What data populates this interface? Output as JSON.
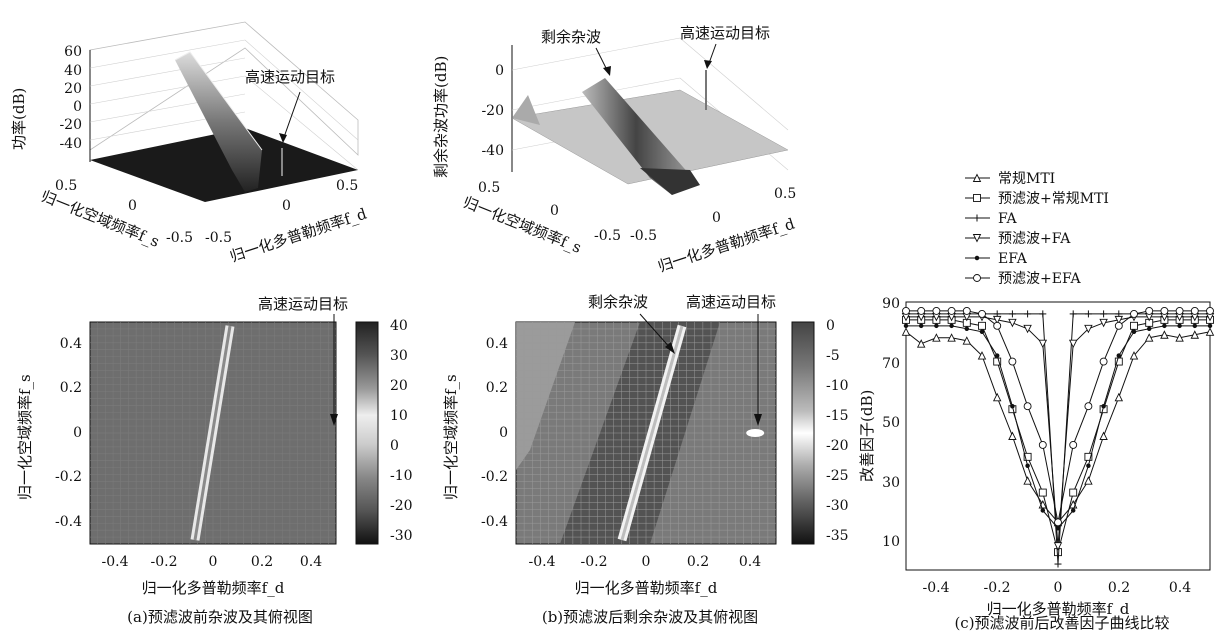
{
  "captions": {
    "a": "(a)预滤波前杂波及其俯视图",
    "b": "(b)预滤波后剩余杂波及其俯视图",
    "c": "(c)预滤波前后改善因子曲线比较"
  },
  "colors": {
    "axis": "#111111",
    "clutter": "#e8e8e8",
    "target": "#ffffff"
  },
  "chart_data": [
    {
      "id": "a-3d",
      "type": "area",
      "zlabel": "功率(dB)",
      "xlabel": "归一化多普勒频率f_d",
      "ylabel": "归一化空域频率f_s",
      "zticks": [
        "60",
        "40",
        "20",
        "0",
        "-20",
        "-40"
      ],
      "xticks": [
        "-0.5",
        "0",
        "0.5"
      ],
      "yticks": [
        "0.5",
        "0",
        "-0.5"
      ],
      "annotations": [
        "高速运动目标"
      ],
      "zlim": [
        -40,
        60
      ]
    },
    {
      "id": "b-3d",
      "type": "area",
      "zlabel": "剩余杂波功率(dB)",
      "xlabel": "归一化多普勒频率f_d",
      "ylabel": "归一化空域频率f_s",
      "zticks": [
        "0",
        "-20",
        "-40"
      ],
      "xticks": [
        "-0.5",
        "0",
        "0.5"
      ],
      "yticks": [
        "0.5",
        "0",
        "-0.5"
      ],
      "annotations": [
        "剩余杂波",
        "高速运动目标"
      ],
      "zlim": [
        -50,
        10
      ]
    },
    {
      "id": "a-top",
      "type": "heatmap",
      "xlabel": "归一化多普勒频率f_d",
      "ylabel": "归一化空域频率f_s",
      "xticks": [
        "-0.4",
        "-0.2",
        "0",
        "0.2",
        "0.4"
      ],
      "yticks": [
        "0.4",
        "0.2",
        "0",
        "-0.2",
        "-0.4"
      ],
      "colorbar": [
        "40",
        "30",
        "20",
        "10",
        "0",
        "-10",
        "-20",
        "-30"
      ],
      "annotations": [
        "高速运动目标"
      ],
      "xlim": [
        -0.5,
        0.5
      ],
      "ylim": [
        -0.5,
        0.5
      ]
    },
    {
      "id": "b-top",
      "type": "heatmap",
      "xlabel": "归一化多普勒频率f_d",
      "ylabel": "归一化空域频率f_s",
      "xticks": [
        "-0.4",
        "-0.2",
        "0",
        "0.2",
        "0.4"
      ],
      "yticks": [
        "0.4",
        "0.2",
        "0",
        "-0.2",
        "-0.4"
      ],
      "colorbar": [
        "0",
        "-5",
        "-10",
        "-15",
        "-20",
        "-25",
        "-30",
        "-35"
      ],
      "annotations": [
        "剩余杂波",
        "高速运动目标"
      ],
      "target": {
        "x": 0.42,
        "y": 0.0
      },
      "xlim": [
        -0.5,
        0.5
      ],
      "ylim": [
        -0.5,
        0.5
      ]
    },
    {
      "id": "c-if",
      "type": "line",
      "xlabel": "归一化多普勒频率f_d",
      "ylabel": "改善因子(dB)",
      "xlim": [
        -0.5,
        0.5
      ],
      "ylim": [
        0,
        90
      ],
      "xticks": [
        "-0.4",
        "-0.2",
        "0",
        "0.2",
        "0.4"
      ],
      "yticks": [
        "90",
        "70",
        "50",
        "30",
        "10"
      ],
      "x": [
        -0.5,
        -0.45,
        -0.4,
        -0.35,
        -0.3,
        -0.25,
        -0.2,
        -0.15,
        -0.1,
        -0.05,
        0,
        0.05,
        0.1,
        0.15,
        0.2,
        0.25,
        0.3,
        0.35,
        0.4,
        0.45,
        0.5
      ],
      "series": [
        {
          "name": "常规MTI",
          "marker": "triangle",
          "values": [
            80,
            76,
            78,
            78,
            77,
            72,
            58,
            45,
            30,
            22,
            16,
            22,
            30,
            45,
            58,
            72,
            78,
            79,
            78,
            79,
            80
          ]
        },
        {
          "name": "预滤波+常规MTI",
          "marker": "square",
          "values": [
            84,
            84,
            84,
            84,
            83,
            82,
            70,
            54,
            38,
            26,
            6,
            26,
            38,
            54,
            70,
            82,
            83,
            84,
            84,
            84,
            84
          ]
        },
        {
          "name": "FA",
          "marker": "plus",
          "values": [
            86,
            86,
            86,
            86,
            86,
            86,
            86,
            86,
            86,
            86,
            2,
            86,
            86,
            86,
            86,
            86,
            86,
            86,
            86,
            86,
            86
          ]
        },
        {
          "name": "预滤波+FA",
          "marker": "triangle-down",
          "values": [
            85,
            85,
            85,
            85,
            85,
            85,
            84,
            83,
            81,
            76,
            8,
            76,
            81,
            83,
            84,
            85,
            85,
            85,
            85,
            85,
            85
          ]
        },
        {
          "name": "EFA",
          "marker": "dot",
          "values": [
            82,
            82,
            82,
            82,
            81,
            80,
            72,
            55,
            35,
            20,
            14,
            20,
            35,
            55,
            72,
            80,
            81,
            82,
            82,
            82,
            82
          ]
        },
        {
          "name": "预滤波+EFA",
          "marker": "circle",
          "values": [
            87,
            87,
            87,
            87,
            87,
            86,
            82,
            70,
            55,
            42,
            16,
            42,
            55,
            70,
            82,
            86,
            87,
            87,
            87,
            87,
            87
          ]
        }
      ]
    }
  ]
}
